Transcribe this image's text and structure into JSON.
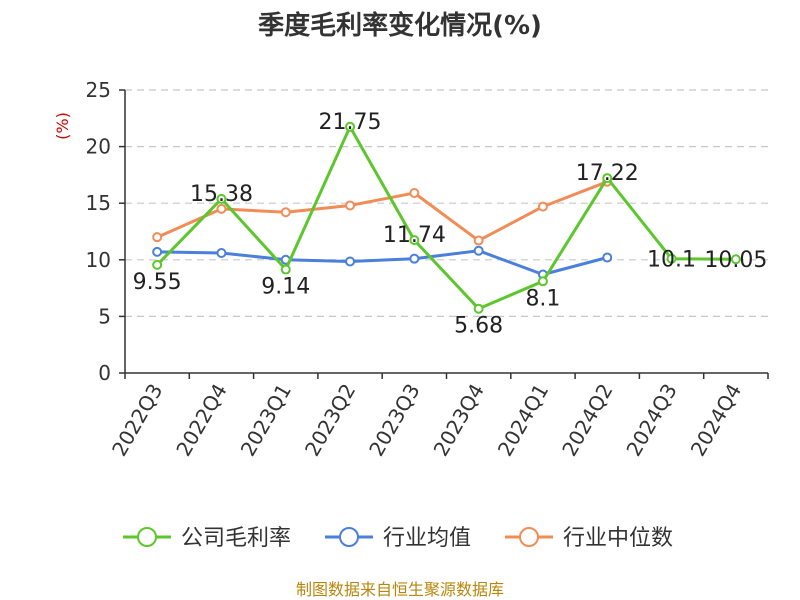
{
  "chart_data": {
    "type": "line",
    "title": "季度毛利率变化情况(%)",
    "ylabel": "(%)",
    "xlabel": "",
    "ylim": [
      0,
      25
    ],
    "yticks": [
      0,
      5,
      10,
      15,
      20,
      25
    ],
    "grid": true,
    "legend_position": "bottom",
    "categories": [
      "2022Q3",
      "2022Q4",
      "2023Q1",
      "2023Q2",
      "2023Q3",
      "2023Q4",
      "2024Q1",
      "2024Q2",
      "2024Q3",
      "2024Q4"
    ],
    "series": [
      {
        "name": "公司毛利率",
        "color": "#5cc72d",
        "values": [
          9.55,
          15.38,
          9.14,
          21.75,
          11.74,
          5.68,
          8.1,
          17.22,
          10.1,
          10.05
        ],
        "labels": [
          "9.55",
          "15.38",
          "9.14",
          "21.75",
          "11.74",
          "5.68",
          "8.1",
          "17.22",
          "10.1",
          "10.05"
        ]
      },
      {
        "name": "行业均值",
        "color": "#4a7fdc",
        "values": [
          10.7,
          10.6,
          10.0,
          9.85,
          10.1,
          10.8,
          8.7,
          10.2,
          null,
          null
        ]
      },
      {
        "name": "行业中位数",
        "color": "#f28c57",
        "values": [
          12.0,
          14.5,
          14.2,
          14.8,
          15.9,
          11.7,
          14.7,
          16.9,
          null,
          null
        ]
      }
    ],
    "source": "制图数据来自恒生聚源数据库"
  }
}
